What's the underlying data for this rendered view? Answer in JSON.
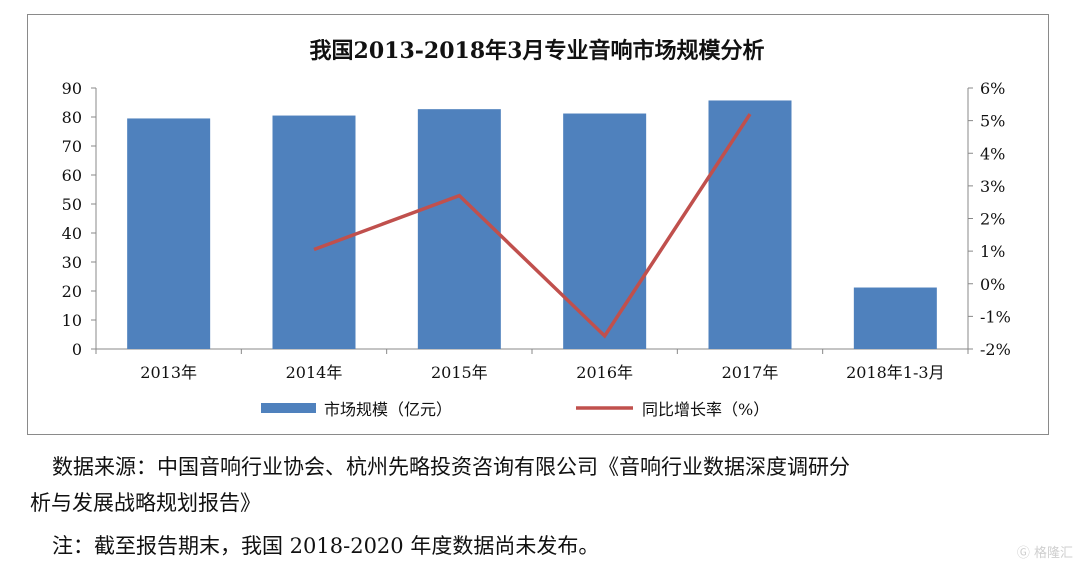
{
  "chart_data": {
    "type": "bar",
    "title": "我国2013-2018年3月专业音响市场规模分析",
    "categories": [
      "2013年",
      "2014年",
      "2015年",
      "2016年",
      "2017年",
      "2018年1-3月"
    ],
    "series": [
      {
        "name": "市场规模（亿元）",
        "kind": "bar",
        "axis": "left",
        "values": [
          79.5,
          80.5,
          82.7,
          81.2,
          85.7,
          21.2
        ]
      },
      {
        "name": "同比增长率（%）",
        "kind": "line",
        "axis": "right",
        "values": [
          null,
          1.05,
          2.7,
          -1.6,
          5.2,
          null
        ]
      }
    ],
    "left_axis": {
      "ylim": [
        0,
        90
      ],
      "ticks": [
        "0",
        "10",
        "20",
        "30",
        "40",
        "50",
        "60",
        "70",
        "80",
        "90"
      ]
    },
    "right_axis": {
      "ylim": [
        -2,
        6
      ],
      "ticks": [
        "-2%",
        "-1%",
        "0%",
        "1%",
        "2%",
        "3%",
        "4%",
        "5%",
        "6%"
      ]
    },
    "legend_position": "bottom",
    "grid": false,
    "colors": {
      "bar": "#4f81bd",
      "line": "#c0504d",
      "axis": "#888888"
    }
  },
  "notes": {
    "source_line1": "数据来源：中国音响行业协会、杭州先略投资咨询有限公司《音响行业数据深度调研分",
    "source_line2": "析与发展战略规划报告》",
    "note_line": "注：截至报告期末，我国 2018-2020 年度数据尚未发布。"
  },
  "watermark": {
    "text": "格隆汇",
    "icon": "g-logo-icon"
  }
}
